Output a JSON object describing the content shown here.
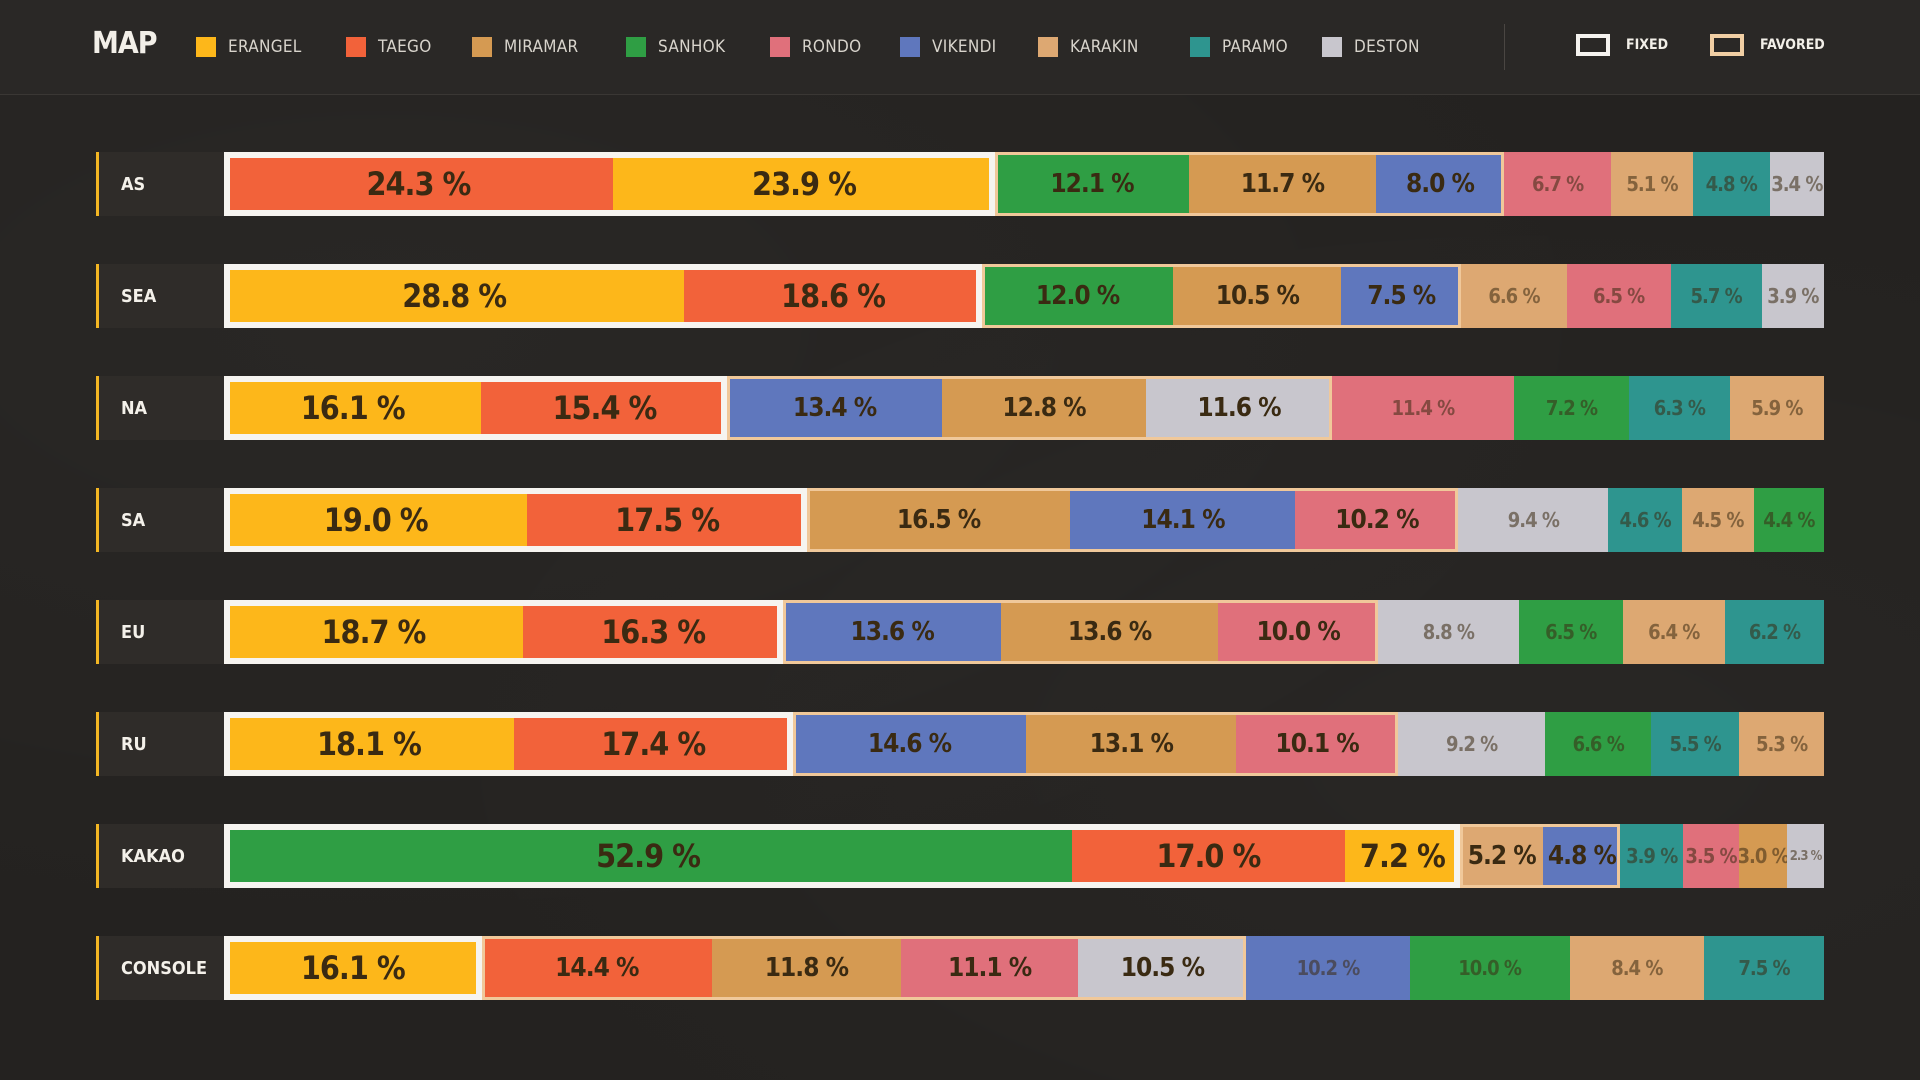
{
  "header": {
    "title": "MAP",
    "legend": [
      {
        "name": "ERANGEL",
        "color": "#fdb71a"
      },
      {
        "name": "TAEGO",
        "color": "#f2623a"
      },
      {
        "name": "MIRAMAR",
        "color": "#d59a52"
      },
      {
        "name": "SANHOK",
        "color": "#2f9e44"
      },
      {
        "name": "RONDO",
        "color": "#e0707b"
      },
      {
        "name": "VIKENDI",
        "color": "#5f77bd"
      },
      {
        "name": "KARAKIN",
        "color": "#dda872"
      },
      {
        "name": "PARAMO",
        "color": "#2e958f"
      },
      {
        "name": "DESTON",
        "color": "#c8c6cd"
      }
    ],
    "key": {
      "fixed_label": "FIXED",
      "favored_label": "FAVORED"
    }
  },
  "chart_data": {
    "type": "bar",
    "orientation": "horizontal",
    "stacked": true,
    "unit": "%",
    "categories": [
      "AS",
      "SEA",
      "NA",
      "SA",
      "EU",
      "RU",
      "KAKAO",
      "CONSOLE"
    ],
    "rows": [
      {
        "label": "AS",
        "fixed": 2,
        "favored": 3,
        "segments": [
          {
            "map": "TAEGO",
            "value": 24.3,
            "text": "24.3 %"
          },
          {
            "map": "ERANGEL",
            "value": 23.9,
            "text": "23.9 %"
          },
          {
            "map": "SANHOK",
            "value": 12.1,
            "text": "12.1 %"
          },
          {
            "map": "MIRAMAR",
            "value": 11.7,
            "text": "11.7 %"
          },
          {
            "map": "VIKENDI",
            "value": 8.0,
            "text": "8.0 %"
          },
          {
            "map": "RONDO",
            "value": 6.7,
            "text": "6.7 %"
          },
          {
            "map": "KARAKIN",
            "value": 5.1,
            "text": "5.1 %"
          },
          {
            "map": "PARAMO",
            "value": 4.8,
            "text": "4.8 %"
          },
          {
            "map": "DESTON",
            "value": 3.4,
            "text": "3.4 %"
          }
        ]
      },
      {
        "label": "SEA",
        "fixed": 2,
        "favored": 3,
        "segments": [
          {
            "map": "ERANGEL",
            "value": 28.8,
            "text": "28.8 %"
          },
          {
            "map": "TAEGO",
            "value": 18.6,
            "text": "18.6 %"
          },
          {
            "map": "SANHOK",
            "value": 12.0,
            "text": "12.0 %"
          },
          {
            "map": "MIRAMAR",
            "value": 10.5,
            "text": "10.5 %"
          },
          {
            "map": "VIKENDI",
            "value": 7.5,
            "text": "7.5 %"
          },
          {
            "map": "KARAKIN",
            "value": 6.6,
            "text": "6.6 %"
          },
          {
            "map": "RONDO",
            "value": 6.5,
            "text": "6.5 %"
          },
          {
            "map": "PARAMO",
            "value": 5.7,
            "text": "5.7 %"
          },
          {
            "map": "DESTON",
            "value": 3.9,
            "text": "3.9 %"
          }
        ]
      },
      {
        "label": "NA",
        "fixed": 2,
        "favored": 3,
        "segments": [
          {
            "map": "ERANGEL",
            "value": 16.1,
            "text": "16.1 %"
          },
          {
            "map": "TAEGO",
            "value": 15.4,
            "text": "15.4 %"
          },
          {
            "map": "VIKENDI",
            "value": 13.4,
            "text": "13.4 %"
          },
          {
            "map": "MIRAMAR",
            "value": 12.8,
            "text": "12.8 %"
          },
          {
            "map": "DESTON",
            "value": 11.6,
            "text": "11.6 %"
          },
          {
            "map": "RONDO",
            "value": 11.4,
            "text": "11.4 %"
          },
          {
            "map": "SANHOK",
            "value": 7.2,
            "text": "7.2 %"
          },
          {
            "map": "PARAMO",
            "value": 6.3,
            "text": "6.3 %"
          },
          {
            "map": "KARAKIN",
            "value": 5.9,
            "text": "5.9 %"
          }
        ]
      },
      {
        "label": "SA",
        "fixed": 2,
        "favored": 3,
        "segments": [
          {
            "map": "ERANGEL",
            "value": 19.0,
            "text": "19.0 %"
          },
          {
            "map": "TAEGO",
            "value": 17.5,
            "text": "17.5 %"
          },
          {
            "map": "MIRAMAR",
            "value": 16.5,
            "text": "16.5 %"
          },
          {
            "map": "VIKENDI",
            "value": 14.1,
            "text": "14.1 %"
          },
          {
            "map": "RONDO",
            "value": 10.2,
            "text": "10.2 %"
          },
          {
            "map": "DESTON",
            "value": 9.4,
            "text": "9.4 %"
          },
          {
            "map": "PARAMO",
            "value": 4.6,
            "text": "4.6 %"
          },
          {
            "map": "KARAKIN",
            "value": 4.5,
            "text": "4.5 %"
          },
          {
            "map": "SANHOK",
            "value": 4.4,
            "text": "4.4 %"
          }
        ]
      },
      {
        "label": "EU",
        "fixed": 2,
        "favored": 3,
        "segments": [
          {
            "map": "ERANGEL",
            "value": 18.7,
            "text": "18.7 %"
          },
          {
            "map": "TAEGO",
            "value": 16.3,
            "text": "16.3 %"
          },
          {
            "map": "VIKENDI",
            "value": 13.6,
            "text": "13.6 %"
          },
          {
            "map": "MIRAMAR",
            "value": 13.6,
            "text": "13.6 %"
          },
          {
            "map": "RONDO",
            "value": 10.0,
            "text": "10.0 %"
          },
          {
            "map": "DESTON",
            "value": 8.8,
            "text": "8.8 %"
          },
          {
            "map": "SANHOK",
            "value": 6.5,
            "text": "6.5 %"
          },
          {
            "map": "KARAKIN",
            "value": 6.4,
            "text": "6.4 %"
          },
          {
            "map": "PARAMO",
            "value": 6.2,
            "text": "6.2 %"
          }
        ]
      },
      {
        "label": "RU",
        "fixed": 2,
        "favored": 3,
        "segments": [
          {
            "map": "ERANGEL",
            "value": 18.1,
            "text": "18.1 %"
          },
          {
            "map": "TAEGO",
            "value": 17.4,
            "text": "17.4 %"
          },
          {
            "map": "VIKENDI",
            "value": 14.6,
            "text": "14.6 %"
          },
          {
            "map": "MIRAMAR",
            "value": 13.1,
            "text": "13.1 %"
          },
          {
            "map": "RONDO",
            "value": 10.1,
            "text": "10.1 %"
          },
          {
            "map": "DESTON",
            "value": 9.2,
            "text": "9.2 %"
          },
          {
            "map": "SANHOK",
            "value": 6.6,
            "text": "6.6 %"
          },
          {
            "map": "PARAMO",
            "value": 5.5,
            "text": "5.5 %"
          },
          {
            "map": "KARAKIN",
            "value": 5.3,
            "text": "5.3 %"
          }
        ]
      },
      {
        "label": "KAKAO",
        "fixed": 3,
        "favored": 2,
        "segments": [
          {
            "map": "SANHOK",
            "value": 52.9,
            "text": "52.9 %"
          },
          {
            "map": "TAEGO",
            "value": 17.0,
            "text": "17.0 %"
          },
          {
            "map": "ERANGEL",
            "value": 7.2,
            "text": "7.2 %"
          },
          {
            "map": "KARAKIN",
            "value": 5.2,
            "text": "5.2 %"
          },
          {
            "map": "VIKENDI",
            "value": 4.8,
            "text": "4.8 %"
          },
          {
            "map": "PARAMO",
            "value": 3.9,
            "text": "3.9 %"
          },
          {
            "map": "RONDO",
            "value": 3.5,
            "text": "3.5 %"
          },
          {
            "map": "MIRAMAR",
            "value": 3.0,
            "text": "3.0 %"
          },
          {
            "map": "DESTON",
            "value": 2.3,
            "text": "2.3 %"
          }
        ]
      },
      {
        "label": "CONSOLE",
        "fixed": 1,
        "favored": 4,
        "segments": [
          {
            "map": "ERANGEL",
            "value": 16.1,
            "text": "16.1 %"
          },
          {
            "map": "TAEGO",
            "value": 14.4,
            "text": "14.4 %"
          },
          {
            "map": "MIRAMAR",
            "value": 11.8,
            "text": "11.8 %"
          },
          {
            "map": "RONDO",
            "value": 11.1,
            "text": "11.1 %"
          },
          {
            "map": "DESTON",
            "value": 10.5,
            "text": "10.5 %"
          },
          {
            "map": "VIKENDI",
            "value": 10.2,
            "text": "10.2 %"
          },
          {
            "map": "SANHOK",
            "value": 10.0,
            "text": "10.0 %"
          },
          {
            "map": "KARAKIN",
            "value": 8.4,
            "text": "8.4 %"
          },
          {
            "map": "PARAMO",
            "value": 7.5,
            "text": "7.5 %"
          }
        ]
      }
    ]
  }
}
